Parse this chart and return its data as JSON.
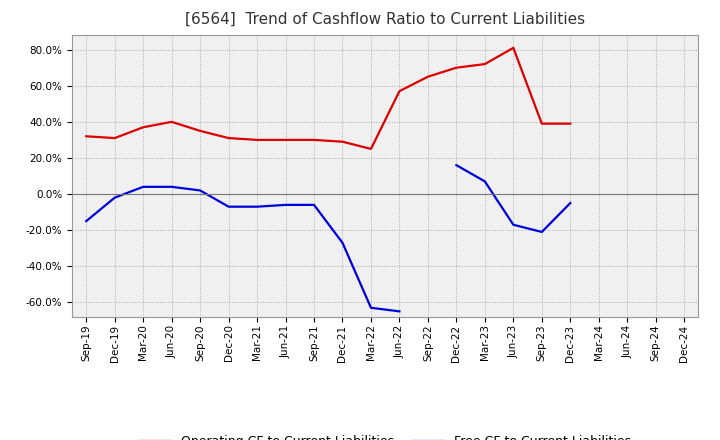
{
  "title": "[6564]  Trend of Cashflow Ratio to Current Liabilities",
  "x_labels": [
    "Sep-19",
    "Dec-19",
    "Mar-20",
    "Jun-20",
    "Sep-20",
    "Dec-20",
    "Mar-21",
    "Jun-21",
    "Sep-21",
    "Dec-21",
    "Mar-22",
    "Jun-22",
    "Sep-22",
    "Dec-22",
    "Mar-23",
    "Jun-23",
    "Sep-23",
    "Dec-23",
    "Mar-24",
    "Jun-24",
    "Sep-24",
    "Dec-24"
  ],
  "operating_cf": [
    0.32,
    0.31,
    0.37,
    0.4,
    0.35,
    0.31,
    0.3,
    0.3,
    0.3,
    0.29,
    0.25,
    0.57,
    0.65,
    0.7,
    0.72,
    0.81,
    0.39,
    0.39,
    null,
    null,
    null,
    null
  ],
  "free_cf": [
    -0.15,
    -0.02,
    0.04,
    0.04,
    0.02,
    -0.07,
    -0.07,
    -0.06,
    -0.06,
    -0.27,
    -0.63,
    -0.65,
    null,
    0.16,
    0.07,
    -0.17,
    -0.21,
    -0.05,
    null,
    null,
    null,
    null
  ],
  "operating_color": "#dd0000",
  "free_color": "#0000dd",
  "ylim": [
    -0.68,
    0.88
  ],
  "yticks": [
    -0.6,
    -0.4,
    -0.2,
    0.0,
    0.2,
    0.4,
    0.6,
    0.8
  ],
  "background_color": "#f0f0f0",
  "grid_color": "#aaaaaa",
  "title_fontsize": 11,
  "tick_fontsize": 7.5,
  "legend_fontsize": 9
}
